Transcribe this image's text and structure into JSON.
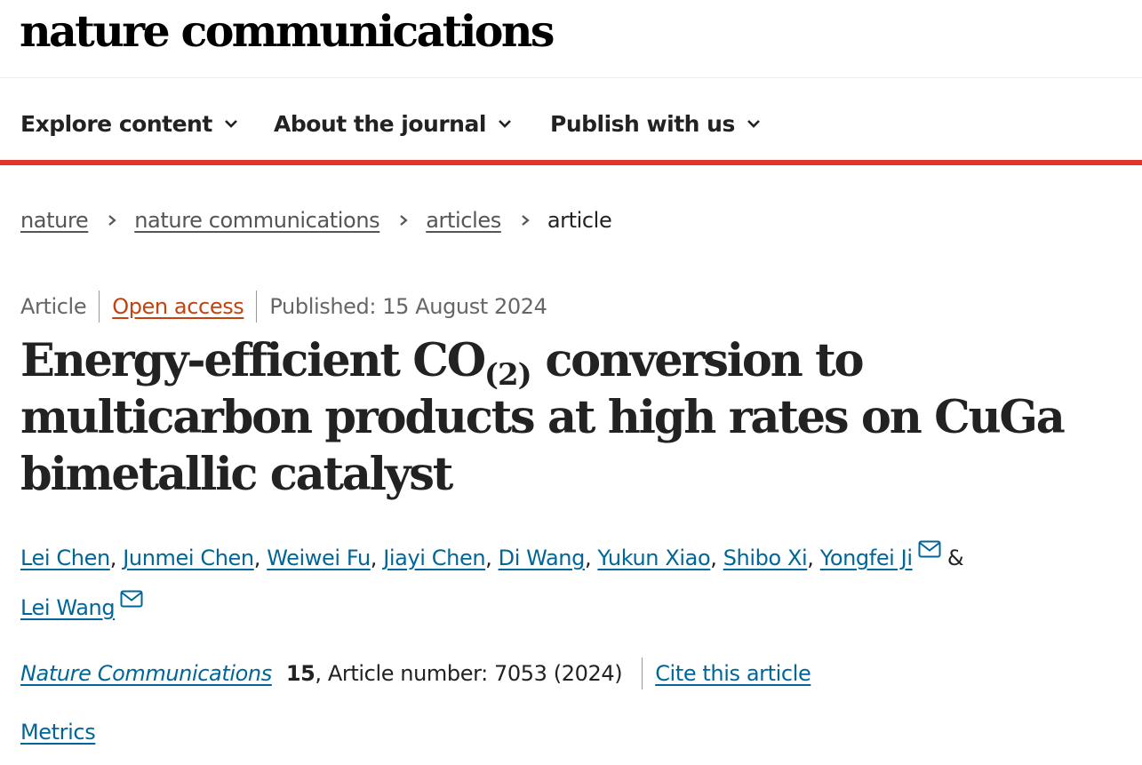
{
  "header": {
    "logo": "nature communications"
  },
  "nav": {
    "items": [
      {
        "label": "Explore content"
      },
      {
        "label": "About the journal"
      },
      {
        "label": "Publish with us"
      }
    ]
  },
  "breadcrumb": {
    "items": [
      "nature",
      "nature communications",
      "articles"
    ],
    "current": "article"
  },
  "article_meta": {
    "type": "Article",
    "access": "Open access",
    "published": "Published: 15 August 2024"
  },
  "title": {
    "part1": "Energy-efficient CO",
    "subscript": "(2)",
    "part2": " conversion to multicarbon products at high rates on CuGa bimetallic catalyst"
  },
  "authors": {
    "list": [
      "Lei Chen",
      "Junmei Chen",
      "Weiwei Fu",
      "Jiayi Chen",
      "Di Wang",
      "Yukun Xiao",
      "Shibo Xi",
      "Yongfei Ji",
      "Lei Wang"
    ],
    "separator": ", ",
    "conjunction": "&"
  },
  "citation": {
    "journal": "Nature Communications",
    "volume": "15",
    "details": ", Article number: 7053 (2024)",
    "cite_link": "Cite this article"
  },
  "metrics": {
    "label": "Metrics"
  },
  "colors": {
    "accent_bar": "#e03428",
    "link": "#006699",
    "open_access": "#c4420d"
  }
}
